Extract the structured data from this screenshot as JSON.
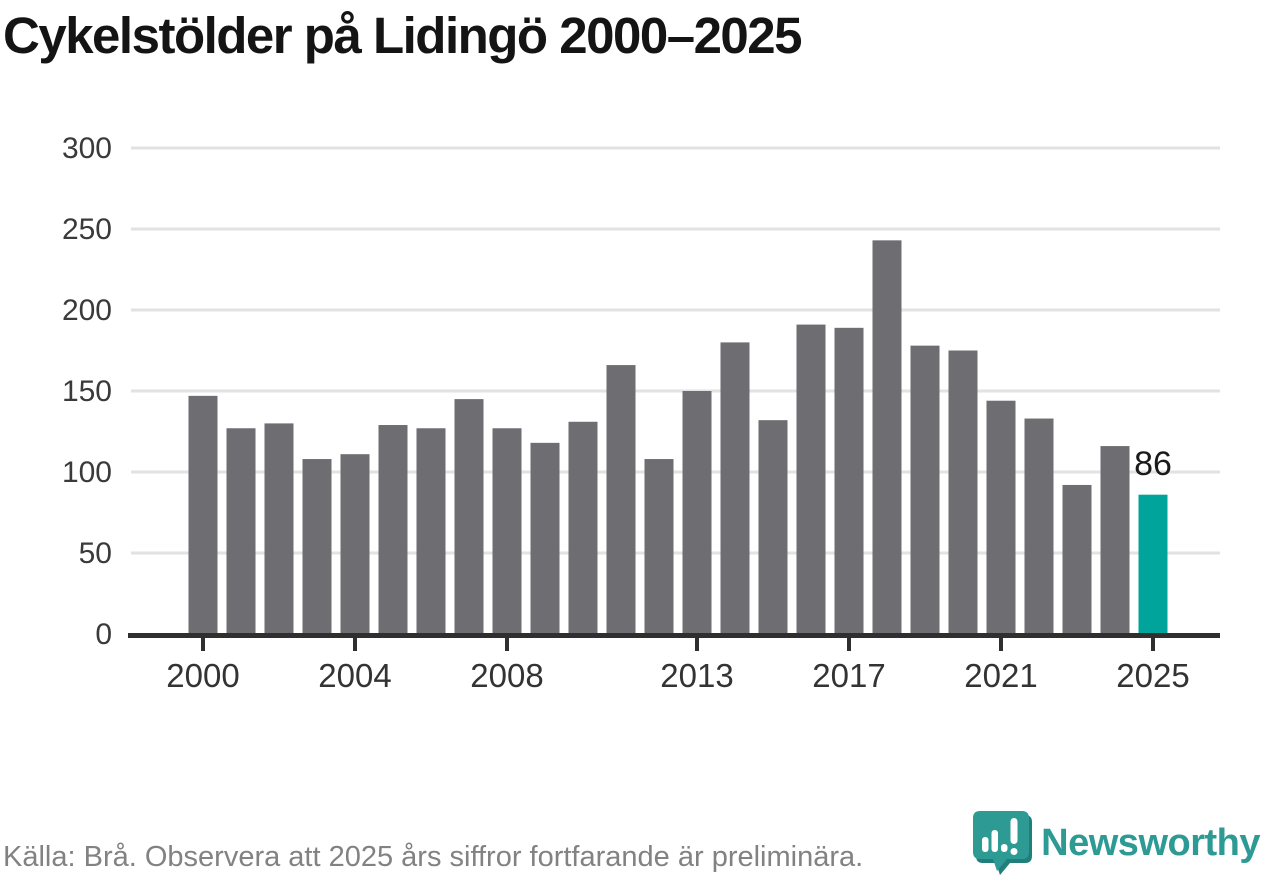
{
  "header": {
    "title": "Cykelstölder på Lidingö 2000–2025"
  },
  "footer": {
    "source_note": "Källa: Brå. Observera att 2025 års siffror fortfarande är preliminära.",
    "brand": "Newsworthy"
  },
  "colors": {
    "bar": "#6e6d71",
    "highlight": "#00a49a",
    "gridline": "#e2e2e2",
    "axis": "#2f2f2f",
    "y_label": "#3a3a3a",
    "x_label": "#333333",
    "annotation": "#1a1a1a",
    "footer_text": "#828282",
    "brand_teal": "#2d9a93",
    "brand_shadow": "#217f7b",
    "background": "#ffffff"
  },
  "chart_data": {
    "type": "bar",
    "title": "Cykelstölder på Lidingö 2000–2025",
    "categories": [
      2000,
      2001,
      2002,
      2003,
      2004,
      2005,
      2006,
      2007,
      2008,
      2009,
      2010,
      2011,
      2012,
      2013,
      2014,
      2015,
      2016,
      2017,
      2018,
      2019,
      2020,
      2021,
      2022,
      2023,
      2024,
      2025
    ],
    "values": [
      147,
      127,
      130,
      108,
      111,
      129,
      127,
      145,
      127,
      118,
      131,
      166,
      108,
      150,
      180,
      132,
      191,
      189,
      243,
      178,
      175,
      144,
      133,
      92,
      116,
      86
    ],
    "highlight_index": 25,
    "highlight_label": "86",
    "x_tick_labels": [
      "2000",
      "2004",
      "2008",
      "2013",
      "2017",
      "2021",
      "2025"
    ],
    "y_ticks": [
      0,
      50,
      100,
      150,
      200,
      250,
      300
    ],
    "ylim": [
      0,
      300
    ],
    "xlabel": "",
    "ylabel": "",
    "grid": "horizontal",
    "legend": "none"
  }
}
